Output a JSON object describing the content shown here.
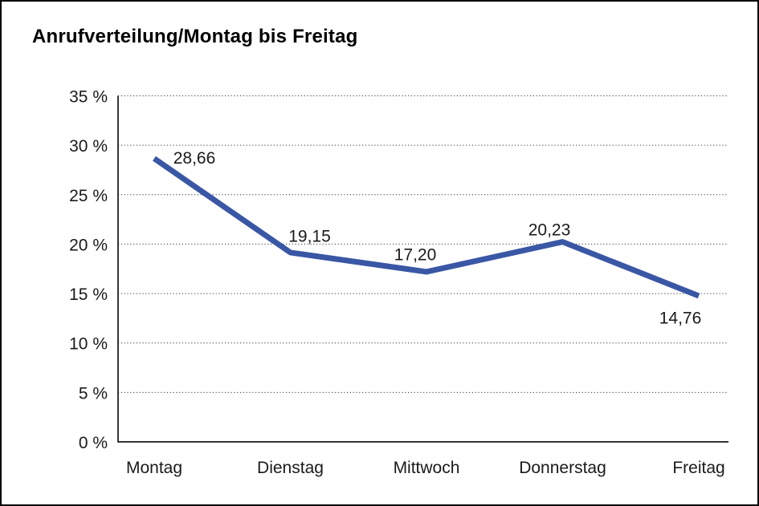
{
  "title": "Anrufverteilung/Montag bis Freitag",
  "colors": {
    "line": "#3A57A5",
    "text": "#000000",
    "background": "#ffffff",
    "frame_border": "#000000",
    "gridline": "#3a3a3a"
  },
  "chart_data": {
    "type": "line",
    "title": "Anrufverteilung/Montag bis Freitag",
    "categories": [
      "Montag",
      "Dienstag",
      "Mittwoch",
      "Donnerstag",
      "Freitag"
    ],
    "values": [
      28.66,
      19.15,
      17.2,
      20.23,
      14.76
    ],
    "data_labels": [
      "28,66",
      "19,15",
      "17,20",
      "20,23",
      "14,76"
    ],
    "series_name": "Anrufverteilung",
    "y_ticks": [
      "0 %",
      "5 %",
      "10 %",
      "15 %",
      "20 %",
      "25 %",
      "30 %",
      "35 %"
    ],
    "ylim": [
      0,
      35
    ],
    "y_step": 5,
    "xlabel": "",
    "ylabel": "",
    "grid": "horizontal-dotted",
    "legend": "none"
  }
}
